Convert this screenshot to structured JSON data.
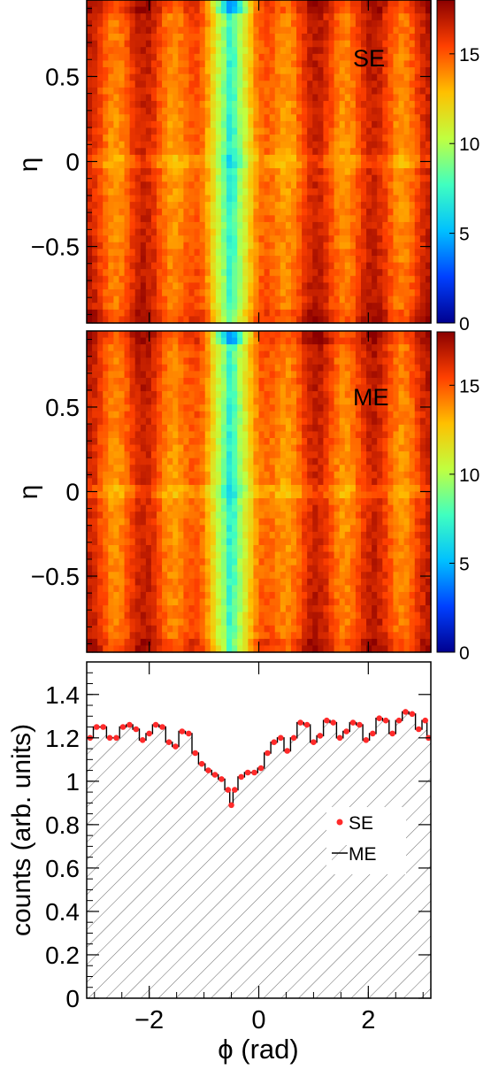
{
  "chart_data": [
    {
      "type": "heatmap",
      "panel_label": "SE",
      "ylabel": "η",
      "xlim": [
        -3.1416,
        3.1416
      ],
      "ylim": [
        -0.95,
        0.95
      ],
      "y_ticks": [
        {
          "value": 0.5,
          "label": "0.5"
        },
        {
          "value": 0,
          "label": "0"
        },
        {
          "value": -0.5,
          "label": "−0.5"
        }
      ],
      "colorbar": {
        "range": [
          0,
          18
        ],
        "ticks": [
          {
            "value": 15,
            "label": "15"
          },
          {
            "value": 10,
            "label": "10"
          },
          {
            "value": 5,
            "label": "5"
          },
          {
            "value": 0,
            "label": "0"
          }
        ],
        "colormap": [
          "#00008f",
          "#0040ff",
          "#00c0ff",
          "#40ffc0",
          "#c0ff40",
          "#ffc000",
          "#ff4000",
          "#8b0000"
        ]
      },
      "valley_phi": -0.5,
      "cell_pattern_min": 9,
      "cell_pattern_max": 18
    },
    {
      "type": "heatmap",
      "panel_label": "ME",
      "ylabel": "η",
      "xlim": [
        -3.1416,
        3.1416
      ],
      "ylim": [
        -0.95,
        0.95
      ],
      "y_ticks": [
        {
          "value": 0.5,
          "label": "0.5"
        },
        {
          "value": 0,
          "label": "0"
        },
        {
          "value": -0.5,
          "label": "−0.5"
        }
      ],
      "colorbar": {
        "range": [
          0,
          18
        ],
        "ticks": [
          {
            "value": 15,
            "label": "15"
          },
          {
            "value": 10,
            "label": "10"
          },
          {
            "value": 5,
            "label": "5"
          },
          {
            "value": 0,
            "label": "0"
          }
        ],
        "colormap": [
          "#00008f",
          "#0040ff",
          "#00c0ff",
          "#40ffc0",
          "#c0ff40",
          "#ffc000",
          "#ff4000",
          "#8b0000"
        ]
      },
      "valley_phi": -0.5,
      "cell_pattern_min": 9,
      "cell_pattern_max": 18
    },
    {
      "type": "line",
      "xlabel": "ϕ (rad)",
      "ylabel": "counts (arb. units)",
      "xlim": [
        -3.1416,
        3.1416
      ],
      "ylim": [
        0,
        1.55
      ],
      "x_ticks": [
        {
          "value": -2,
          "label": "−2"
        },
        {
          "value": 0,
          "label": "0"
        },
        {
          "value": 2,
          "label": "2"
        }
      ],
      "y_ticks": [
        {
          "value": 0,
          "label": "0"
        },
        {
          "value": 0.2,
          "label": "0.2"
        },
        {
          "value": 0.4,
          "label": "0.4"
        },
        {
          "value": 0.6,
          "label": "0.6"
        },
        {
          "value": 0.8,
          "label": "0.8"
        },
        {
          "value": 1,
          "label": "1"
        },
        {
          "value": 1.2,
          "label": "1.2"
        },
        {
          "value": 1.4,
          "label": "1.4"
        }
      ],
      "legend": {
        "placement": "center-right",
        "items": [
          {
            "label": "SE",
            "marker": "dot",
            "color": "#ff2a2a"
          },
          {
            "label": "ME",
            "marker": "hatched",
            "color": "#000000"
          }
        ]
      },
      "series": [
        {
          "name": "SE",
          "color": "#ff2a2a",
          "x": [
            -3.08,
            -2.96,
            -2.84,
            -2.72,
            -2.6,
            -2.48,
            -2.36,
            -2.24,
            -2.12,
            -2.0,
            -1.88,
            -1.76,
            -1.64,
            -1.52,
            -1.4,
            -1.28,
            -1.16,
            -1.04,
            -0.92,
            -0.8,
            -0.68,
            -0.56,
            -0.5,
            -0.44,
            -0.32,
            -0.2,
            -0.08,
            0.04,
            0.16,
            0.28,
            0.4,
            0.52,
            0.64,
            0.76,
            0.88,
            1.0,
            1.12,
            1.24,
            1.36,
            1.48,
            1.6,
            1.72,
            1.84,
            1.96,
            2.08,
            2.2,
            2.32,
            2.44,
            2.56,
            2.68,
            2.8,
            2.92,
            3.04,
            3.1
          ],
          "values": [
            1.2,
            1.25,
            1.25,
            1.2,
            1.2,
            1.25,
            1.26,
            1.24,
            1.19,
            1.22,
            1.26,
            1.25,
            1.18,
            1.16,
            1.23,
            1.22,
            1.13,
            1.08,
            1.05,
            1.03,
            1.01,
            0.96,
            0.89,
            0.96,
            1.02,
            1.04,
            1.04,
            1.06,
            1.13,
            1.18,
            1.2,
            1.14,
            1.2,
            1.27,
            1.26,
            1.18,
            1.21,
            1.28,
            1.27,
            1.2,
            1.23,
            1.27,
            1.26,
            1.19,
            1.22,
            1.29,
            1.28,
            1.22,
            1.28,
            1.32,
            1.31,
            1.24,
            1.28,
            1.2
          ]
        },
        {
          "name": "ME",
          "color": "#000000",
          "x": [
            -3.08,
            -2.96,
            -2.84,
            -2.72,
            -2.6,
            -2.48,
            -2.36,
            -2.24,
            -2.12,
            -2.0,
            -1.88,
            -1.76,
            -1.64,
            -1.52,
            -1.4,
            -1.28,
            -1.16,
            -1.04,
            -0.92,
            -0.8,
            -0.68,
            -0.56,
            -0.5,
            -0.44,
            -0.32,
            -0.2,
            -0.08,
            0.04,
            0.16,
            0.28,
            0.4,
            0.52,
            0.64,
            0.76,
            0.88,
            1.0,
            1.12,
            1.24,
            1.36,
            1.48,
            1.6,
            1.72,
            1.84,
            1.96,
            2.08,
            2.2,
            2.32,
            2.44,
            2.56,
            2.68,
            2.8,
            2.92,
            3.04,
            3.1
          ],
          "values": [
            1.2,
            1.25,
            1.25,
            1.2,
            1.2,
            1.25,
            1.26,
            1.24,
            1.19,
            1.22,
            1.26,
            1.25,
            1.18,
            1.16,
            1.23,
            1.22,
            1.13,
            1.08,
            1.05,
            1.03,
            1.01,
            0.96,
            0.89,
            0.96,
            1.02,
            1.04,
            1.04,
            1.06,
            1.13,
            1.18,
            1.2,
            1.14,
            1.2,
            1.27,
            1.26,
            1.18,
            1.21,
            1.28,
            1.27,
            1.2,
            1.23,
            1.27,
            1.26,
            1.19,
            1.22,
            1.29,
            1.28,
            1.22,
            1.28,
            1.32,
            1.31,
            1.24,
            1.28,
            1.2
          ]
        }
      ]
    }
  ]
}
